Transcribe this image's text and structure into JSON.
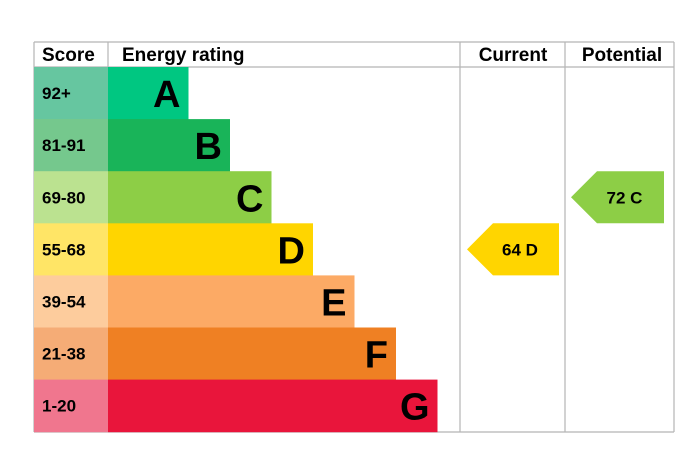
{
  "chart_data": {
    "type": "bar",
    "headers": {
      "score": "Score",
      "rating": "Energy rating",
      "current": "Current",
      "potential": "Potential"
    },
    "bands": [
      {
        "letter": "A",
        "range": "92+",
        "color": "#00c781",
        "score_color": "#66c6a0",
        "length": 1
      },
      {
        "letter": "B",
        "range": "81-91",
        "color": "#19b459",
        "score_color": "#75c88d",
        "length": 2
      },
      {
        "letter": "C",
        "range": "69-80",
        "color": "#8dce46",
        "score_color": "#bbe290",
        "length": 3
      },
      {
        "letter": "D",
        "range": "55-68",
        "color": "#ffd500",
        "score_color": "#ffe566",
        "length": 4
      },
      {
        "letter": "E",
        "range": "39-54",
        "color": "#fcaa65",
        "score_color": "#fdcc9d",
        "length": 5
      },
      {
        "letter": "F",
        "range": "21-38",
        "color": "#ef8023",
        "score_color": "#f5ac76",
        "length": 6
      },
      {
        "letter": "G",
        "range": "1-20",
        "color": "#e9153b",
        "score_color": "#f0768e",
        "length": 7
      }
    ],
    "current": {
      "value": 64,
      "letter": "D",
      "label": "64  D",
      "color": "#ffd500"
    },
    "potential": {
      "value": 72,
      "letter": "C",
      "label": "72  C",
      "color": "#8dce46"
    }
  }
}
